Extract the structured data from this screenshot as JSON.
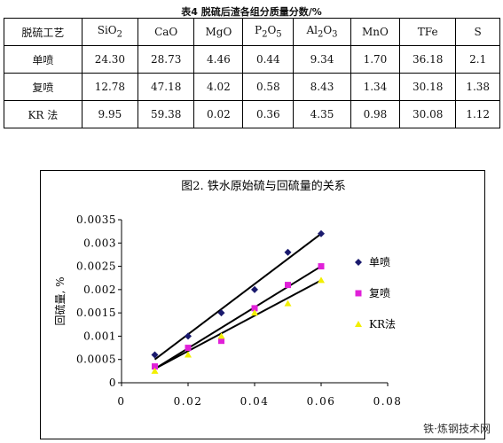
{
  "table": {
    "caption": "表4   脱硫后渣各组分质量分数/%",
    "headers": [
      {
        "base": "脱硫工艺"
      },
      {
        "base": "SiO",
        "sub": "2"
      },
      {
        "base": "CaO"
      },
      {
        "base": "MgO"
      },
      {
        "base": "P",
        "sub": "2",
        "mid": "O",
        "sub2": "5"
      },
      {
        "base": "Al",
        "sub": "2",
        "mid": "O",
        "sub2": "3"
      },
      {
        "base": "MnO"
      },
      {
        "base": "TFe"
      },
      {
        "base": "S"
      }
    ],
    "rows": [
      [
        "单喷",
        "24.30",
        "28.73",
        "4.46",
        "0.44",
        "9.34",
        "1.70",
        "36.18",
        "2.1"
      ],
      [
        "复喷",
        "12.78",
        "47.18",
        "4.02",
        "0.58",
        "8.43",
        "1.34",
        "30.18",
        "1.38"
      ],
      [
        "KR 法",
        "9.95",
        "59.38",
        "0.02",
        "0.36",
        "4.35",
        "0.98",
        "30.08",
        "1.12"
      ]
    ]
  },
  "chart_data": {
    "type": "scatter",
    "title": "图2. 铁水原始硫与回硫量的关系",
    "xlabel": "",
    "ylabel": "回硫量, %",
    "xlim": [
      0,
      0.08
    ],
    "ylim": [
      0,
      0.0035
    ],
    "x_ticks": [
      "0",
      "0.02",
      "0.04",
      "0.06",
      "0.08"
    ],
    "y_ticks": [
      "0",
      "0.0005",
      "0.001",
      "0.0015",
      "0.002",
      "0.0025",
      "0.003",
      "0.0035"
    ],
    "legend_position": "right",
    "series": [
      {
        "name": "单喷",
        "marker": "diamond",
        "color": "#1a1a6e",
        "x": [
          0.01,
          0.02,
          0.03,
          0.04,
          0.05,
          0.06
        ],
        "y": [
          0.0006,
          0.001,
          0.0015,
          0.002,
          0.0028,
          0.0032
        ],
        "trend": [
          [
            0.01,
            0.0005
          ],
          [
            0.06,
            0.0032
          ]
        ]
      },
      {
        "name": "复喷",
        "marker": "square",
        "color": "#e020d8",
        "x": [
          0.01,
          0.02,
          0.03,
          0.04,
          0.05,
          0.06
        ],
        "y": [
          0.00035,
          0.00075,
          0.0009,
          0.0016,
          0.0021,
          0.0025
        ],
        "trend": [
          [
            0.01,
            0.0003
          ],
          [
            0.06,
            0.0025
          ]
        ]
      },
      {
        "name": "KR法",
        "marker": "triangle",
        "color": "#f2ef00",
        "x": [
          0.01,
          0.02,
          0.03,
          0.04,
          0.05,
          0.06
        ],
        "y": [
          0.00025,
          0.0006,
          0.001,
          0.0015,
          0.0017,
          0.0022
        ],
        "trend": [
          [
            0.01,
            0.0003
          ],
          [
            0.06,
            0.0022
          ]
        ]
      }
    ]
  },
  "watermark": "铁·炼钢技术网"
}
